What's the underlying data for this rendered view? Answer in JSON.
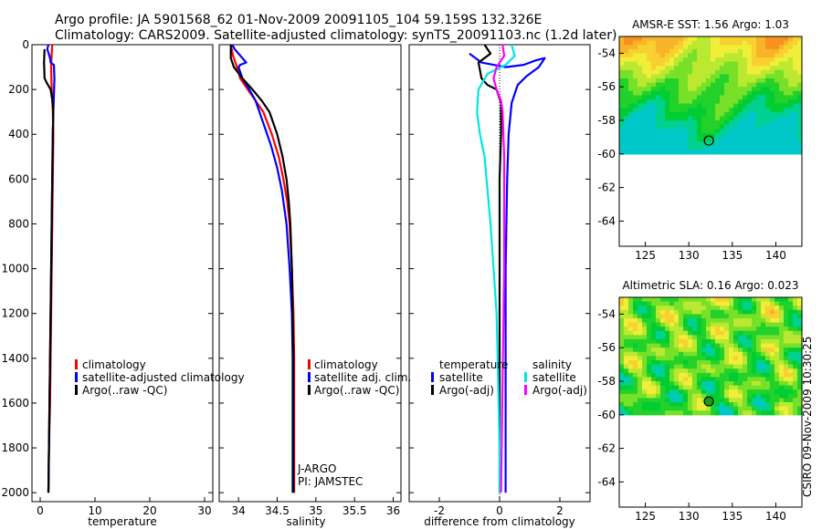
{
  "header": {
    "title_line1": "Argo profile: JA 5901568_62 01-Nov-2009 20091105_104 59.159S 132.326E",
    "title_line2": "Climatology: CARS2009. Satellite-adjusted climatology: synTS_20091103.nc (1.2d later)"
  },
  "footer_stamp": "CSIRO 09-Nov-2009 10:30:25",
  "colors": {
    "climatology": "#ff0000",
    "satellite": "#0000ff",
    "argo": "#000000",
    "satellite_diff_salinity": "#00e5e5",
    "argo_diff_salinity": "#ff00ff"
  },
  "chart_data": [
    {
      "id": "temperature",
      "type": "line",
      "xlabel": "temperature",
      "xlim": [
        -1.5,
        31.5
      ],
      "xticks": [
        0,
        10,
        20,
        30
      ],
      "ylim": [
        0,
        2040
      ],
      "yticks": [
        0,
        200,
        400,
        600,
        800,
        1000,
        1200,
        1400,
        1600,
        1800,
        2000
      ],
      "legend": [
        "climatology",
        "satellite-adjusted climatology",
        "Argo(..raw -QC)"
      ],
      "series": [
        {
          "name": "climatology",
          "color": "#ff0000",
          "points": [
            [
              2.2,
              0
            ],
            [
              2.1,
              40
            ],
            [
              2.0,
              100
            ],
            [
              2.1,
              200
            ],
            [
              2.3,
              300
            ],
            [
              2.4,
              400
            ],
            [
              2.3,
              600
            ],
            [
              2.2,
              800
            ],
            [
              2.1,
              1000
            ],
            [
              2.0,
              1200
            ],
            [
              1.9,
              1400
            ],
            [
              1.8,
              1600
            ],
            [
              1.6,
              1800
            ],
            [
              1.5,
              2000
            ]
          ]
        },
        {
          "name": "satellite-adjusted climatology",
          "color": "#0000ff",
          "points": [
            [
              1.5,
              0
            ],
            [
              1.3,
              20
            ],
            [
              1.8,
              60
            ],
            [
              1.9,
              80
            ],
            [
              2.5,
              90
            ],
            [
              2.6,
              150
            ],
            [
              2.4,
              300
            ],
            [
              2.3,
              400
            ],
            [
              2.2,
              600
            ],
            [
              2.1,
              800
            ],
            [
              2.0,
              1000
            ],
            [
              1.9,
              1200
            ],
            [
              1.8,
              1400
            ],
            [
              1.7,
              1600
            ],
            [
              1.6,
              1800
            ],
            [
              1.5,
              2000
            ]
          ]
        },
        {
          "name": "Argo(..raw -QC)",
          "color": "#000000",
          "points": [
            [
              0.8,
              20
            ],
            [
              0.7,
              80
            ],
            [
              0.8,
              150
            ],
            [
              1.2,
              170
            ],
            [
              1.9,
              200
            ],
            [
              2.3,
              260
            ],
            [
              2.4,
              300
            ],
            [
              2.3,
              400
            ],
            [
              2.2,
              600
            ],
            [
              2.1,
              800
            ],
            [
              2.0,
              1000
            ],
            [
              1.9,
              1200
            ],
            [
              1.8,
              1400
            ],
            [
              1.7,
              1600
            ],
            [
              1.6,
              1800
            ],
            [
              1.5,
              2000
            ]
          ]
        }
      ]
    },
    {
      "id": "salinity",
      "type": "line",
      "xlabel": "salinity",
      "xlim": [
        33.75,
        36.1
      ],
      "xticks": [
        34,
        34.5,
        35,
        35.5,
        36
      ],
      "ylim": [
        0,
        2040
      ],
      "legend": [
        "climatology",
        "satellite adj. clim.",
        "Argo(..raw -QC)"
      ],
      "annotations": [
        "J-ARGO",
        "PI: JAMSTEC"
      ],
      "series": [
        {
          "name": "climatology",
          "color": "#ff0000",
          "points": [
            [
              33.9,
              0
            ],
            [
              33.93,
              50
            ],
            [
              33.98,
              100
            ],
            [
              34.02,
              150
            ],
            [
              34.12,
              200
            ],
            [
              34.22,
              250
            ],
            [
              34.32,
              300
            ],
            [
              34.43,
              400
            ],
            [
              34.52,
              500
            ],
            [
              34.58,
              600
            ],
            [
              34.63,
              700
            ],
            [
              34.66,
              800
            ],
            [
              34.69,
              1000
            ],
            [
              34.71,
              1200
            ],
            [
              34.72,
              1400
            ],
            [
              34.72,
              1600
            ],
            [
              34.72,
              1800
            ],
            [
              34.72,
              2000
            ]
          ]
        },
        {
          "name": "satellite adj. clim.",
          "color": "#0000ff",
          "points": [
            [
              33.92,
              0
            ],
            [
              33.95,
              20
            ],
            [
              34.05,
              60
            ],
            [
              34.1,
              80
            ],
            [
              34.02,
              90
            ],
            [
              34.0,
              100
            ],
            [
              34.05,
              150
            ],
            [
              34.14,
              200
            ],
            [
              34.22,
              250
            ],
            [
              34.32,
              350
            ],
            [
              34.42,
              450
            ],
            [
              34.5,
              550
            ],
            [
              34.56,
              650
            ],
            [
              34.62,
              800
            ],
            [
              34.66,
              1000
            ],
            [
              34.69,
              1200
            ],
            [
              34.7,
              1400
            ],
            [
              34.7,
              1600
            ],
            [
              34.7,
              1800
            ],
            [
              34.7,
              2000
            ]
          ]
        },
        {
          "name": "Argo(..raw -QC)",
          "color": "#000000",
          "points": [
            [
              33.9,
              0
            ],
            [
              33.9,
              60
            ],
            [
              33.94,
              100
            ],
            [
              34.05,
              150
            ],
            [
              34.18,
              200
            ],
            [
              34.3,
              250
            ],
            [
              34.4,
              300
            ],
            [
              34.5,
              400
            ],
            [
              34.57,
              500
            ],
            [
              34.62,
              600
            ],
            [
              34.65,
              700
            ],
            [
              34.67,
              800
            ],
            [
              34.69,
              1000
            ],
            [
              34.7,
              1200
            ],
            [
              34.71,
              1400
            ],
            [
              34.71,
              1600
            ],
            [
              34.71,
              1800
            ],
            [
              34.71,
              2000
            ]
          ]
        }
      ]
    },
    {
      "id": "difference",
      "type": "line",
      "xlabel": "difference from climatology",
      "xlim": [
        -3,
        3
      ],
      "xticks": [
        -2,
        0,
        2
      ],
      "ylim": [
        0,
        2040
      ],
      "legend_temperature": {
        "heading": "temperature",
        "items": [
          "satellite",
          "Argo(-adj)"
        ]
      },
      "legend_salinity": {
        "heading": "salinity",
        "items": [
          "satellite",
          "Argo(-adj)"
        ]
      },
      "series": [
        {
          "name": "temperature satellite",
          "color": "#0000ff",
          "points": [
            [
              -1.0,
              40
            ],
            [
              -0.6,
              80
            ],
            [
              0.2,
              100
            ],
            [
              0.8,
              90
            ],
            [
              1.2,
              70
            ],
            [
              1.5,
              60
            ],
            [
              1.3,
              100
            ],
            [
              0.9,
              140
            ],
            [
              0.6,
              180
            ],
            [
              0.4,
              260
            ],
            [
              0.3,
              400
            ],
            [
              0.25,
              600
            ],
            [
              0.2,
              1000
            ],
            [
              0.2,
              1500
            ],
            [
              0.2,
              2000
            ]
          ]
        },
        {
          "name": "temperature Argo(-adj)",
          "color": "#000000",
          "points": [
            [
              -0.5,
              0
            ],
            [
              -0.3,
              40
            ],
            [
              -0.7,
              80
            ],
            [
              -0.6,
              150
            ],
            [
              -0.4,
              180
            ],
            [
              -0.1,
              200
            ],
            [
              0.05,
              260
            ],
            [
              0.05,
              400
            ],
            [
              0.0,
              600
            ],
            [
              0.0,
              1000
            ],
            [
              0.0,
              1500
            ],
            [
              0.0,
              2000
            ]
          ]
        },
        {
          "name": "salinity satellite",
          "color": "#00e5e5",
          "points": [
            [
              0.4,
              0
            ],
            [
              0.5,
              50
            ],
            [
              0.2,
              90
            ],
            [
              -0.4,
              130
            ],
            [
              -0.7,
              200
            ],
            [
              -0.75,
              300
            ],
            [
              -0.65,
              400
            ],
            [
              -0.5,
              500
            ],
            [
              -0.4,
              650
            ],
            [
              -0.3,
              800
            ],
            [
              -0.2,
              1000
            ],
            [
              -0.1,
              1200
            ],
            [
              -0.05,
              1500
            ],
            [
              0.0,
              1800
            ],
            [
              0.0,
              2000
            ]
          ]
        },
        {
          "name": "salinity Argo(-adj)",
          "color": "#ff00ff",
          "points": [
            [
              0.1,
              0
            ],
            [
              0.15,
              50
            ],
            [
              -0.1,
              100
            ],
            [
              -0.2,
              150
            ],
            [
              -0.1,
              200
            ],
            [
              0.05,
              250
            ],
            [
              0.1,
              300
            ],
            [
              0.15,
              500
            ],
            [
              0.15,
              1000
            ],
            [
              0.1,
              1500
            ],
            [
              0.05,
              2000
            ]
          ]
        }
      ]
    },
    {
      "id": "sst_map",
      "type": "heatmap",
      "title": "AMSR-E SST: 1.56 Argo: 1.03",
      "xlim": [
        122,
        143
      ],
      "ylim": [
        -65.5,
        -53
      ],
      "xticks": [
        125,
        130,
        135,
        140
      ],
      "yticks": [
        -54,
        -56,
        -58,
        -60,
        -62,
        -64
      ],
      "data_lat_range": [
        -60,
        -53
      ],
      "float_position": [
        132.3,
        -59.2
      ]
    },
    {
      "id": "sla_map",
      "type": "heatmap",
      "title": "Altimetric SLA: 0.16 Argo: 0.023",
      "xlim": [
        122,
        143
      ],
      "ylim": [
        -65.5,
        -53
      ],
      "xticks": [
        125,
        130,
        135,
        140
      ],
      "yticks": [
        -54,
        -56,
        -58,
        -60,
        -62,
        -64
      ],
      "data_lat_range": [
        -60,
        -53
      ],
      "float_position": [
        132.3,
        -59.2
      ]
    }
  ]
}
